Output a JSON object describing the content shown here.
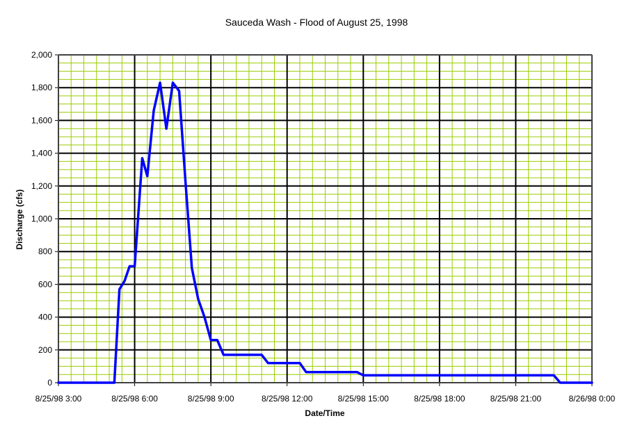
{
  "chart_data": {
    "type": "line",
    "title": "Sauceda Wash - Flood of August 25, 1998",
    "xlabel": "Date/Time",
    "ylabel": "Discharge (cfs)",
    "x_tick_labels": [
      "8/25/98 3:00",
      "8/25/98 6:00",
      "8/25/98 9:00",
      "8/25/98 12:00",
      "8/25/98 15:00",
      "8/25/98 18:00",
      "8/25/98 21:00",
      "8/26/98 0:00"
    ],
    "y_tick_labels": [
      "0",
      "200",
      "400",
      "600",
      "800",
      "1,000",
      "1,200",
      "1,400",
      "1,600",
      "1,800",
      "2,000"
    ],
    "xlim": [
      "8/25/98 3:00",
      "8/26/98 0:00"
    ],
    "ylim": [
      0,
      2000
    ],
    "grid": {
      "major": true,
      "minor": true
    },
    "colors": {
      "plot_background": "#ffffff",
      "minor_grid": "#99cc00",
      "major_grid": "#000000",
      "line": "#0000ff"
    },
    "series": [
      {
        "x": [
          "8/25/98 3:00",
          "8/25/98 5:12",
          "8/25/98 5:24",
          "8/25/98 5:36",
          "8/25/98 5:48",
          "8/25/98 6:00",
          "8/25/98 6:18",
          "8/25/98 6:30",
          "8/25/98 6:45",
          "8/25/98 7:00",
          "8/25/98 7:15",
          "8/25/98 7:30",
          "8/25/98 7:45",
          "8/25/98 8:00",
          "8/25/98 8:15",
          "8/25/98 8:30",
          "8/25/98 8:45",
          "8/25/98 9:00",
          "8/25/98 9:15",
          "8/25/98 9:30",
          "8/25/98 9:45",
          "8/25/98 11:00",
          "8/25/98 11:15",
          "8/25/98 12:30",
          "8/25/98 12:45",
          "8/25/98 14:45",
          "8/25/98 15:00",
          "8/25/98 22:30",
          "8/25/98 22:45",
          "8/26/98 0:00"
        ],
        "values": [
          0,
          0,
          570,
          620,
          710,
          710,
          1370,
          1260,
          1660,
          1830,
          1550,
          1830,
          1780,
          1230,
          700,
          510,
          400,
          260,
          260,
          170,
          170,
          170,
          120,
          120,
          65,
          65,
          45,
          45,
          0,
          0
        ]
      }
    ]
  }
}
